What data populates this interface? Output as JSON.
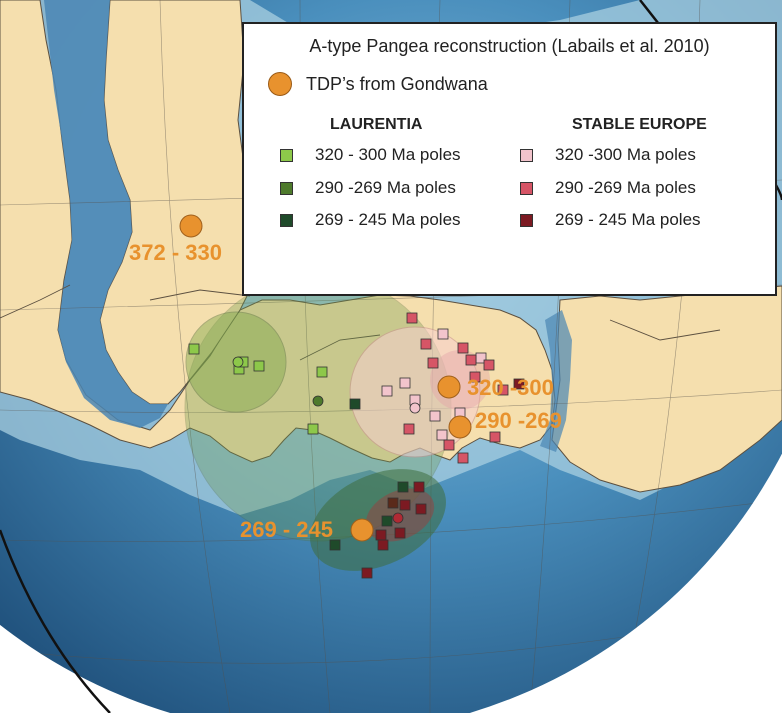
{
  "legend": {
    "title": "A-type Pangea reconstruction (Labails et al. 2010)",
    "tdp_label": "TDP’s from Gondwana",
    "laurentia": {
      "heading": "LAURENTIA",
      "items": [
        {
          "label": "320 - 300 Ma poles",
          "color": "#8dc84a"
        },
        {
          "label": "290 -269 Ma poles",
          "color": "#4e7a2c"
        },
        {
          "label": "269 - 245 Ma poles",
          "color": "#1f4a2a"
        }
      ]
    },
    "stable_europe": {
      "heading": "STABLE EUROPE",
      "items": [
        {
          "label": "320 -300 Ma poles",
          "color": "#f2c4cc"
        },
        {
          "label": "290 -269 Ma poles",
          "color": "#d65566"
        },
        {
          "label": "269 - 245 Ma poles",
          "color": "#7c1a22"
        }
      ]
    }
  },
  "map_labels": {
    "tdp_372_330": "372 - 330",
    "tdp_320_300": "320 -300",
    "tdp_290_269": "290 -269",
    "tdp_269_245": "269 - 245"
  },
  "colors": {
    "land": "#f5dfae",
    "ocean": "#2d6c9c",
    "tdp": "#e8922e"
  }
}
